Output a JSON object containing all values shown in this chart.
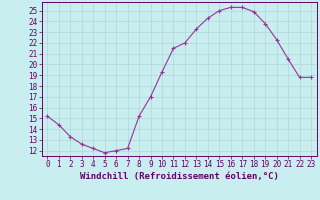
{
  "x": [
    0,
    1,
    2,
    3,
    4,
    5,
    6,
    7,
    8,
    9,
    10,
    11,
    12,
    13,
    14,
    15,
    16,
    17,
    18,
    19,
    20,
    21,
    22,
    23
  ],
  "y": [
    15.2,
    14.4,
    13.3,
    12.6,
    12.2,
    11.8,
    12.0,
    12.2,
    15.2,
    17.0,
    19.3,
    21.5,
    22.0,
    23.3,
    24.3,
    25.0,
    25.3,
    25.3,
    24.9,
    23.8,
    22.3,
    20.5,
    18.8,
    18.8
  ],
  "line_color": "#993399",
  "marker": "+",
  "marker_size": 3.5,
  "bg_color": "#c8eef0",
  "grid_color": "#b0d8d8",
  "xlabel": "Windchill (Refroidissement éolien,°C)",
  "ylabel": "",
  "ylim_min": 11.5,
  "ylim_max": 25.8,
  "xlim_min": -0.5,
  "xlim_max": 23.5,
  "yticks": [
    12,
    13,
    14,
    15,
    16,
    17,
    18,
    19,
    20,
    21,
    22,
    23,
    24,
    25
  ],
  "xticks": [
    0,
    1,
    2,
    3,
    4,
    5,
    6,
    7,
    8,
    9,
    10,
    11,
    12,
    13,
    14,
    15,
    16,
    17,
    18,
    19,
    20,
    21,
    22,
    23
  ],
  "tick_fontsize": 5.5,
  "xlabel_fontsize": 6.5,
  "axis_color": "#660066",
  "spine_color": "#660066",
  "linewidth": 0.8
}
